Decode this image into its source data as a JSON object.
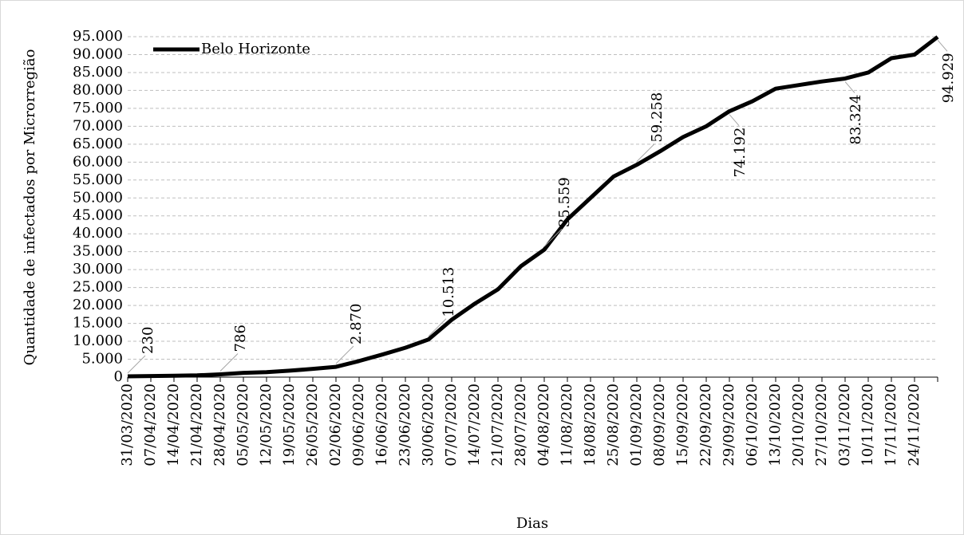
{
  "chart_data": {
    "type": "line",
    "y_label": "Quantidade de infectados por Microrregião",
    "x_label": "Dias",
    "categories": [
      "31/03/2020",
      "07/04/2020",
      "14/04/2020",
      "21/04/2020",
      "28/04/2020",
      "05/05/2020",
      "12/05/2020",
      "19/05/2020",
      "26/05/2020",
      "02/06/2020",
      "09/06/2020",
      "16/06/2020",
      "23/06/2020",
      "30/06/2020",
      "07/07/2020",
      "14/07/2020",
      "21/07/2020",
      "28/07/2020",
      "04/08/2020",
      "11/08/2020",
      "18/08/2020",
      "25/08/2020",
      "01/09/2020",
      "08/09/2020",
      "15/09/2020",
      "22/09/2020",
      "29/09/2020",
      "06/10/2020",
      "13/10/2020",
      "20/10/2020",
      "27/10/2020",
      "03/11/2020",
      "10/11/2020",
      "17/11/2020",
      "24/11/2020",
      null
    ],
    "series": [
      {
        "name": "Belo Horizonte",
        "color": "#000000",
        "values": [
          230,
          300,
          400,
          500,
          786,
          1200,
          1400,
          1800,
          2300,
          2870,
          4500,
          6300,
          8200,
          10513,
          16000,
          20500,
          24500,
          31000,
          35559,
          44000,
          50000,
          56000,
          59258,
          63000,
          67000,
          70000,
          74192,
          77000,
          80500,
          81500,
          82500,
          83324,
          85000,
          89000,
          90000,
          94929
        ],
        "value_labels": [
          "230",
          null,
          null,
          null,
          "786",
          null,
          null,
          null,
          null,
          "2.870",
          null,
          null,
          null,
          "10.513",
          null,
          null,
          null,
          null,
          "35.559",
          null,
          null,
          null,
          "59.258",
          null,
          null,
          null,
          "74.192",
          null,
          null,
          null,
          null,
          "83.324",
          null,
          null,
          null,
          "94.929"
        ]
      }
    ],
    "ylim": [
      0,
      95000
    ],
    "yticks": [
      0,
      {
        "value": 5000,
        "label": "5.000"
      },
      {
        "value": 10000,
        "label": "10.000"
      },
      {
        "value": 15000,
        "label": "15.000"
      },
      {
        "value": 20000,
        "label": "20.000"
      },
      {
        "value": 25000,
        "label": "25.000"
      },
      {
        "value": 30000,
        "label": "30.000"
      },
      {
        "value": 35000,
        "label": "35.000"
      },
      {
        "value": 40000,
        "label": "40.000"
      },
      {
        "value": 45000,
        "label": "45.000"
      },
      {
        "value": 50000,
        "label": "50.000"
      },
      {
        "value": 55000,
        "label": "55.000"
      },
      {
        "value": 60000,
        "label": "60.000"
      },
      {
        "value": 65000,
        "label": "65.000"
      },
      {
        "value": 70000,
        "label": "70.000"
      },
      {
        "value": 75000,
        "label": "75.000"
      },
      {
        "value": 80000,
        "label": "80.000"
      },
      {
        "value": 85000,
        "label": "85.000"
      },
      {
        "value": 90000,
        "label": "90.000"
      },
      {
        "value": 95000,
        "label": "95.000"
      }
    ],
    "grid": true,
    "legend": "top-left"
  }
}
